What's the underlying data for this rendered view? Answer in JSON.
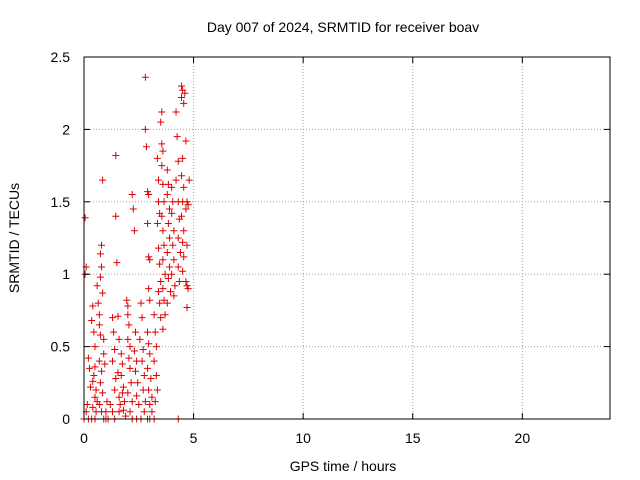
{
  "chart_data": {
    "type": "scatter",
    "title": "Day 007 of 2024, SRMTID for receiver boav",
    "xlabel": "GPS time / hours",
    "ylabel": "SRMTID / TECUs",
    "xlim": [
      0,
      24
    ],
    "ylim": [
      0,
      2.5
    ],
    "x_ticks": [
      0,
      5,
      10,
      15,
      20
    ],
    "x_tick_labels": [
      "0",
      "5",
      "10",
      "15",
      "20"
    ],
    "y_ticks": [
      0,
      0.5,
      1,
      1.5,
      2,
      2.5
    ],
    "y_tick_labels": [
      "0",
      "0.5",
      "1",
      "1.5",
      "2",
      "2.5"
    ],
    "grid": true,
    "marker": "+",
    "series": [
      {
        "name": "SRMTID",
        "color": "#e00000",
        "points": [
          [
            0.05,
            1.39
          ],
          [
            0.1,
            1.05
          ],
          [
            0.05,
            1.0
          ],
          [
            0.2,
            0.42
          ],
          [
            0.25,
            0.35
          ],
          [
            0.3,
            0.22
          ],
          [
            0.15,
            0.1
          ],
          [
            0.1,
            0.05
          ],
          [
            0.0,
            0.0
          ],
          [
            0.2,
            0.0
          ],
          [
            0.35,
            0.0
          ],
          [
            0.5,
            0.0
          ],
          [
            0.4,
            0.78
          ],
          [
            0.35,
            0.68
          ],
          [
            0.45,
            0.6
          ],
          [
            0.5,
            0.5
          ],
          [
            0.5,
            0.36
          ],
          [
            0.45,
            0.3
          ],
          [
            0.4,
            0.26
          ],
          [
            0.55,
            0.2
          ],
          [
            0.5,
            0.15
          ],
          [
            0.6,
            0.12
          ],
          [
            0.4,
            0.08
          ],
          [
            0.55,
            0.05
          ],
          [
            0.6,
            0.92
          ],
          [
            0.65,
            0.8
          ],
          [
            0.7,
            0.72
          ],
          [
            0.7,
            0.65
          ],
          [
            0.75,
            0.58
          ],
          [
            0.7,
            0.4
          ],
          [
            0.8,
            0.33
          ],
          [
            0.75,
            0.25
          ],
          [
            0.85,
            0.18
          ],
          [
            0.7,
            0.1
          ],
          [
            0.8,
            0.05
          ],
          [
            0.8,
            1.2
          ],
          [
            0.75,
            1.14
          ],
          [
            0.8,
            1.05
          ],
          [
            0.75,
            0.98
          ],
          [
            0.85,
            0.87
          ],
          [
            0.9,
            0.55
          ],
          [
            0.9,
            0.45
          ],
          [
            0.95,
            0.38
          ],
          [
            0.85,
            1.65
          ],
          [
            0.9,
            0.0
          ],
          [
            1.0,
            0.0
          ],
          [
            1.1,
            0.0
          ],
          [
            1.0,
            0.05
          ],
          [
            1.05,
            0.12
          ],
          [
            1.2,
            0.1
          ],
          [
            1.3,
            0.7
          ],
          [
            1.35,
            0.6
          ],
          [
            1.4,
            0.48
          ],
          [
            1.3,
            0.4
          ],
          [
            1.45,
            0.28
          ],
          [
            1.4,
            0.2
          ],
          [
            1.3,
            0.05
          ],
          [
            1.4,
            0.0
          ],
          [
            1.45,
            1.82
          ],
          [
            1.45,
            1.4
          ],
          [
            1.5,
            1.08
          ],
          [
            1.55,
            0.71
          ],
          [
            1.6,
            0.55
          ],
          [
            1.55,
            0.32
          ],
          [
            1.6,
            0.15
          ],
          [
            1.65,
            0.1
          ],
          [
            1.6,
            0.05
          ],
          [
            1.7,
            0.45
          ],
          [
            1.75,
            0.38
          ],
          [
            1.7,
            0.3
          ],
          [
            1.8,
            0.22
          ],
          [
            1.75,
            0.18
          ],
          [
            1.85,
            0.12
          ],
          [
            1.8,
            0.06
          ],
          [
            1.9,
            0.02
          ],
          [
            1.95,
            0.82
          ],
          [
            2.0,
            0.78
          ],
          [
            2.0,
            0.72
          ],
          [
            2.05,
            0.65
          ],
          [
            2.0,
            0.55
          ],
          [
            2.1,
            0.5
          ],
          [
            2.05,
            0.42
          ],
          [
            2.1,
            0.35
          ],
          [
            2.15,
            0.25
          ],
          [
            2.0,
            0.18
          ],
          [
            2.2,
            0.12
          ],
          [
            2.1,
            0.05
          ],
          [
            2.2,
            0.0
          ],
          [
            2.2,
            1.55
          ],
          [
            2.25,
            1.45
          ],
          [
            2.3,
            1.3
          ],
          [
            2.35,
            0.6
          ],
          [
            2.3,
            0.47
          ],
          [
            2.4,
            0.4
          ],
          [
            2.35,
            0.33
          ],
          [
            2.45,
            0.25
          ],
          [
            2.4,
            0.16
          ],
          [
            2.5,
            0.1
          ],
          [
            2.4,
            0.0
          ],
          [
            2.6,
            0.0
          ],
          [
            2.6,
            0.8
          ],
          [
            2.65,
            0.7
          ],
          [
            2.55,
            0.55
          ],
          [
            2.7,
            0.48
          ],
          [
            2.65,
            0.4
          ],
          [
            2.75,
            0.3
          ],
          [
            2.7,
            0.2
          ],
          [
            2.8,
            0.12
          ],
          [
            2.75,
            0.05
          ],
          [
            2.8,
            2.36
          ],
          [
            2.8,
            2.0
          ],
          [
            2.85,
            1.88
          ],
          [
            2.9,
            1.57
          ],
          [
            2.95,
            1.55
          ],
          [
            2.9,
            1.35
          ],
          [
            2.95,
            1.12
          ],
          [
            3.0,
            1.1
          ],
          [
            2.95,
            0.9
          ],
          [
            3.0,
            0.82
          ],
          [
            2.9,
            0.6
          ],
          [
            2.95,
            0.52
          ],
          [
            3.0,
            0.45
          ],
          [
            2.9,
            0.35
          ],
          [
            3.05,
            0.28
          ],
          [
            2.95,
            0.2
          ],
          [
            3.1,
            0.15
          ],
          [
            3.0,
            0.1
          ],
          [
            3.1,
            0.05
          ],
          [
            3.2,
            0.0
          ],
          [
            2.9,
            0.0
          ],
          [
            3.0,
            0.0
          ],
          [
            3.2,
            0.72
          ],
          [
            3.25,
            0.6
          ],
          [
            3.3,
            0.5
          ],
          [
            3.2,
            0.4
          ],
          [
            3.3,
            0.3
          ],
          [
            3.35,
            0.2
          ],
          [
            3.25,
            0.12
          ],
          [
            3.35,
            1.8
          ],
          [
            3.4,
            1.65
          ],
          [
            3.4,
            1.5
          ],
          [
            3.45,
            1.42
          ],
          [
            3.35,
            1.35
          ],
          [
            3.4,
            1.18
          ],
          [
            3.45,
            1.07
          ],
          [
            3.5,
            0.95
          ],
          [
            3.4,
            0.88
          ],
          [
            3.45,
            0.8
          ],
          [
            3.5,
            0.7
          ],
          [
            3.55,
            2.12
          ],
          [
            3.5,
            2.05
          ],
          [
            3.55,
            1.9
          ],
          [
            3.6,
            1.85
          ],
          [
            3.55,
            1.75
          ],
          [
            3.6,
            1.62
          ],
          [
            3.65,
            1.5
          ],
          [
            3.55,
            1.4
          ],
          [
            3.6,
            1.3
          ],
          [
            3.65,
            1.2
          ],
          [
            3.6,
            1.1
          ],
          [
            3.7,
            1.0
          ],
          [
            3.6,
            0.9
          ],
          [
            3.65,
            0.82
          ],
          [
            3.7,
            0.72
          ],
          [
            3.6,
            0.62
          ],
          [
            3.8,
            1.72
          ],
          [
            3.85,
            1.62
          ],
          [
            3.8,
            1.55
          ],
          [
            3.9,
            1.45
          ],
          [
            3.85,
            1.35
          ],
          [
            3.9,
            1.25
          ],
          [
            3.8,
            1.15
          ],
          [
            3.9,
            1.05
          ],
          [
            3.85,
            0.97
          ],
          [
            3.95,
            0.88
          ],
          [
            3.8,
            0.8
          ],
          [
            4.0,
            1.6
          ],
          [
            4.05,
            1.5
          ],
          [
            4.0,
            1.42
          ],
          [
            4.1,
            1.3
          ],
          [
            4.05,
            1.2
          ],
          [
            4.1,
            1.1
          ],
          [
            4.0,
            1.0
          ],
          [
            4.15,
            0.92
          ],
          [
            4.1,
            0.85
          ],
          [
            4.2,
            2.12
          ],
          [
            4.25,
            1.95
          ],
          [
            4.3,
            1.78
          ],
          [
            4.2,
            1.65
          ],
          [
            4.3,
            1.5
          ],
          [
            4.35,
            1.38
          ],
          [
            4.3,
            1.25
          ],
          [
            4.4,
            1.15
          ],
          [
            4.3,
            1.05
          ],
          [
            4.35,
            0.95
          ],
          [
            4.3,
            0.0
          ],
          [
            4.45,
            2.3
          ],
          [
            4.5,
            2.27
          ],
          [
            4.45,
            2.22
          ],
          [
            4.55,
            2.18
          ],
          [
            4.5,
            1.8
          ],
          [
            4.45,
            1.68
          ],
          [
            4.55,
            1.6
          ],
          [
            4.5,
            1.5
          ],
          [
            4.45,
            1.4
          ],
          [
            4.55,
            1.3
          ],
          [
            4.5,
            1.22
          ],
          [
            4.55,
            1.12
          ],
          [
            4.5,
            1.02
          ],
          [
            4.6,
            2.25
          ],
          [
            4.65,
            1.92
          ],
          [
            4.7,
            1.5
          ],
          [
            4.65,
            1.45
          ],
          [
            4.7,
            1.2
          ],
          [
            4.65,
            0.95
          ],
          [
            4.7,
            0.92
          ],
          [
            4.75,
            0.9
          ],
          [
            4.7,
            0.77
          ],
          [
            4.8,
            1.65
          ],
          [
            4.75,
            1.48
          ]
        ]
      }
    ]
  }
}
